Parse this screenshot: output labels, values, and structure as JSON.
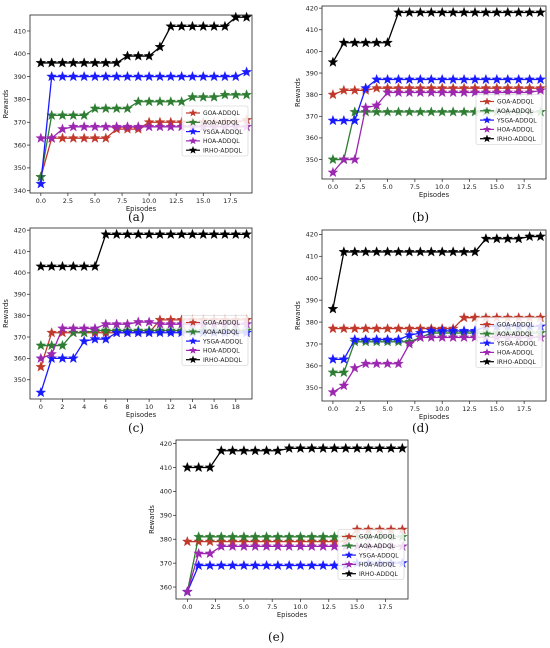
{
  "colors": {
    "GOA-ADDQL": "#c0392b",
    "AOA-ADDQL": "#2e7d32",
    "YSGA-ADDQL": "#1a1aff",
    "HOA-ADDQL": "#9c27b0",
    "IRHO-ADDQL": "#000000"
  },
  "chart_data": [
    {
      "type": "line",
      "caption": "(a)",
      "xlabel": "Episodes",
      "ylabel": "Rewards",
      "xlim": [
        -1,
        19.5
      ],
      "ylim": [
        339,
        417
      ],
      "xticks": [
        0.0,
        2.5,
        5.0,
        7.5,
        10.0,
        12.5,
        15.0,
        17.5
      ],
      "yticks": [
        340,
        350,
        360,
        370,
        380,
        390,
        400,
        410
      ],
      "x": [
        0,
        1,
        2,
        3,
        4,
        5,
        6,
        7,
        8,
        9,
        10,
        11,
        12,
        13,
        14,
        15,
        16,
        17,
        18,
        19
      ],
      "legend": "center-right",
      "series": [
        {
          "name": "GOA-ADDQL",
          "values": [
            346,
            363,
            363,
            363,
            363,
            363,
            363,
            367,
            367,
            367,
            370,
            370,
            370,
            370,
            370,
            370,
            370,
            370,
            370,
            371
          ]
        },
        {
          "name": "AOA-ADDQL",
          "values": [
            346,
            373,
            373,
            373,
            373,
            376,
            376,
            376,
            376,
            379,
            379,
            379,
            379,
            379,
            381,
            381,
            381,
            382,
            382,
            382
          ]
        },
        {
          "name": "YSGA-ADDQL",
          "values": [
            343,
            390,
            390,
            390,
            390,
            390,
            390,
            390,
            390,
            390,
            390,
            390,
            390,
            390,
            390,
            390,
            390,
            390,
            390,
            392
          ]
        },
        {
          "name": "HOA-ADDQL",
          "values": [
            363,
            363,
            367,
            368,
            368,
            368,
            368,
            368,
            368,
            368,
            368,
            368,
            368,
            368,
            368,
            368,
            368,
            368,
            368,
            368
          ]
        },
        {
          "name": "IRHO-ADDQL",
          "values": [
            396,
            396,
            396,
            396,
            396,
            396,
            396,
            396,
            399,
            399,
            399,
            403,
            412,
            412,
            412,
            412,
            412,
            412,
            416,
            416
          ]
        }
      ]
    },
    {
      "type": "line",
      "caption": "(b)",
      "xlabel": "Episodes",
      "ylabel": "Rewards",
      "xlim": [
        -1,
        19.5
      ],
      "ylim": [
        341,
        421
      ],
      "xticks": [
        0.0,
        2.5,
        5.0,
        7.5,
        10.0,
        12.5,
        15.0,
        17.5
      ],
      "yticks": [
        350,
        360,
        370,
        380,
        390,
        400,
        410,
        420
      ],
      "x": [
        0,
        1,
        2,
        3,
        4,
        5,
        6,
        7,
        8,
        9,
        10,
        11,
        12,
        13,
        14,
        15,
        16,
        17,
        18,
        19
      ],
      "legend": "center-right",
      "series": [
        {
          "name": "GOA-ADDQL",
          "values": [
            380,
            382,
            382,
            382,
            383,
            383,
            383,
            383,
            383,
            383,
            383,
            383,
            383,
            383,
            383,
            383,
            383,
            383,
            383,
            383
          ]
        },
        {
          "name": "AOA-ADDQL",
          "values": [
            350,
            350,
            372,
            372,
            372,
            372,
            372,
            372,
            372,
            372,
            372,
            372,
            372,
            372,
            372,
            372,
            372,
            372,
            372,
            372
          ]
        },
        {
          "name": "YSGA-ADDQL",
          "values": [
            368,
            368,
            368,
            383,
            387,
            387,
            387,
            387,
            387,
            387,
            387,
            387,
            387,
            387,
            387,
            387,
            387,
            387,
            387,
            387
          ]
        },
        {
          "name": "HOA-ADDQL",
          "values": [
            344,
            350,
            350,
            374,
            375,
            381,
            381,
            381,
            381,
            381,
            381,
            381,
            381,
            381,
            381,
            381,
            381,
            381,
            381,
            382
          ]
        },
        {
          "name": "IRHO-ADDQL",
          "values": [
            395,
            404,
            404,
            404,
            404,
            404,
            418,
            418,
            418,
            418,
            418,
            418,
            418,
            418,
            418,
            418,
            418,
            418,
            418,
            418
          ]
        }
      ]
    },
    {
      "type": "line",
      "caption": "(c)",
      "xlabel": "Episodes",
      "ylabel": "Rewards",
      "xlim": [
        -1,
        19.5
      ],
      "ylim": [
        341,
        421
      ],
      "xticks": [
        0,
        2,
        4,
        6,
        8,
        10,
        12,
        14,
        16,
        18
      ],
      "yticks": [
        350,
        360,
        370,
        380,
        390,
        400,
        410,
        420
      ],
      "x": [
        0,
        1,
        2,
        3,
        4,
        5,
        6,
        7,
        8,
        9,
        10,
        11,
        12,
        13,
        14,
        15,
        16,
        17,
        18,
        19
      ],
      "legend": "center-right",
      "series": [
        {
          "name": "GOA-ADDQL",
          "values": [
            356,
            372,
            372,
            372,
            372,
            372,
            372,
            372,
            372,
            372,
            372,
            378,
            378,
            378,
            378,
            378,
            378,
            378,
            378,
            378
          ]
        },
        {
          "name": "AOA-ADDQL",
          "values": [
            366,
            366,
            366,
            372,
            372,
            373,
            373,
            373,
            373,
            373,
            373,
            373,
            373,
            373,
            373,
            373,
            373,
            373,
            373,
            373
          ]
        },
        {
          "name": "YSGA-ADDQL",
          "values": [
            344,
            360,
            360,
            360,
            368,
            369,
            369,
            372,
            372,
            372,
            372,
            372,
            372,
            372,
            372,
            372,
            372,
            372,
            372,
            372
          ]
        },
        {
          "name": "HOA-ADDQL",
          "values": [
            360,
            362,
            374,
            374,
            374,
            374,
            376,
            376,
            376,
            377,
            377,
            376,
            376,
            376,
            376,
            376,
            376,
            376,
            376,
            376
          ]
        },
        {
          "name": "IRHO-ADDQL",
          "values": [
            403,
            403,
            403,
            403,
            403,
            403,
            418,
            418,
            418,
            418,
            418,
            418,
            418,
            418,
            418,
            418,
            418,
            418,
            418,
            418
          ]
        }
      ]
    },
    {
      "type": "line",
      "caption": "(d)",
      "xlabel": "Episodes",
      "ylabel": "Rewards",
      "xlim": [
        -1,
        19.5
      ],
      "ylim": [
        344,
        422
      ],
      "xticks": [
        0.0,
        2.5,
        5.0,
        7.5,
        10.0,
        12.5,
        15.0,
        17.5
      ],
      "yticks": [
        350,
        360,
        370,
        380,
        390,
        400,
        410,
        420
      ],
      "x": [
        0,
        1,
        2,
        3,
        4,
        5,
        6,
        7,
        8,
        9,
        10,
        11,
        12,
        13,
        14,
        15,
        16,
        17,
        18,
        19
      ],
      "legend": "center-right",
      "series": [
        {
          "name": "GOA-ADDQL",
          "values": [
            377,
            377,
            377,
            377,
            377,
            377,
            377,
            377,
            377,
            377,
            377,
            377,
            382,
            382,
            382,
            382,
            382,
            382,
            382,
            382
          ]
        },
        {
          "name": "AOA-ADDQL",
          "values": [
            357,
            357,
            371,
            371,
            371,
            371,
            371,
            371,
            373,
            375,
            375,
            375,
            375,
            375,
            375,
            375,
            375,
            375,
            375,
            375
          ]
        },
        {
          "name": "YSGA-ADDQL",
          "values": [
            363,
            363,
            372,
            372,
            372,
            372,
            372,
            374,
            375,
            376,
            376,
            376,
            376,
            376,
            378,
            378,
            378,
            378,
            378,
            378
          ]
        },
        {
          "name": "HOA-ADDQL",
          "values": [
            348,
            351,
            359,
            361,
            361,
            361,
            361,
            370,
            373,
            373,
            373,
            373,
            373,
            373,
            373,
            373,
            373,
            373,
            373,
            373
          ]
        },
        {
          "name": "IRHO-ADDQL",
          "values": [
            386,
            412,
            412,
            412,
            412,
            412,
            412,
            412,
            412,
            412,
            412,
            412,
            412,
            412,
            418,
            418,
            418,
            418,
            419,
            419
          ]
        }
      ]
    },
    {
      "type": "line",
      "caption": "(e)",
      "xlabel": "Episodes",
      "ylabel": "Rewards",
      "xlim": [
        -1,
        19.5
      ],
      "ylim": [
        355,
        421.5
      ],
      "xticks": [
        0.0,
        2.5,
        5.0,
        7.5,
        10.0,
        12.5,
        15.0,
        17.5
      ],
      "yticks": [
        360,
        370,
        380,
        390,
        400,
        410,
        420
      ],
      "x": [
        0,
        1,
        2,
        3,
        4,
        5,
        6,
        7,
        8,
        9,
        10,
        11,
        12,
        13,
        14,
        15,
        16,
        17,
        18,
        19
      ],
      "legend": "center-right",
      "series": [
        {
          "name": "GOA-ADDQL",
          "values": [
            379,
            379,
            379,
            379,
            379,
            379,
            379,
            379,
            379,
            379,
            379,
            379,
            379,
            379,
            379,
            384,
            384,
            384,
            384,
            384
          ]
        },
        {
          "name": "AOA-ADDQL",
          "values": [
            358,
            381,
            381,
            381,
            381,
            381,
            381,
            381,
            381,
            381,
            381,
            381,
            381,
            381,
            381,
            381,
            381,
            381,
            381,
            381
          ]
        },
        {
          "name": "YSGA-ADDQL",
          "values": [
            358,
            369,
            369,
            369,
            369,
            369,
            369,
            369,
            369,
            369,
            369,
            369,
            369,
            369,
            369,
            370,
            370,
            370,
            370,
            370
          ]
        },
        {
          "name": "HOA-ADDQL",
          "values": [
            358,
            374,
            374,
            377,
            377,
            377,
            377,
            377,
            377,
            377,
            377,
            377,
            377,
            377,
            377,
            377,
            377,
            377,
            377,
            377
          ]
        },
        {
          "name": "IRHO-ADDQL",
          "values": [
            410,
            410,
            410,
            417,
            417,
            417,
            417,
            417,
            417,
            418,
            418,
            418,
            418,
            418,
            418,
            418,
            418,
            418,
            418,
            418
          ]
        }
      ]
    }
  ]
}
